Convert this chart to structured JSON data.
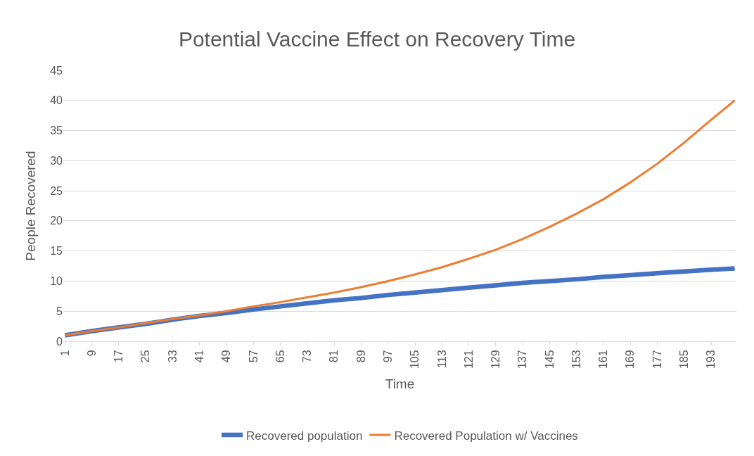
{
  "chart_data": {
    "type": "line",
    "title": "Potential Vaccine Effect on Recovery Time",
    "xlabel": "Time",
    "ylabel": "People Recovered",
    "x": [
      1,
      9,
      17,
      25,
      33,
      41,
      49,
      57,
      65,
      73,
      81,
      89,
      97,
      105,
      113,
      121,
      129,
      137,
      145,
      153,
      161,
      169,
      177,
      185,
      193,
      200
    ],
    "series": [
      {
        "name": "Recovered population",
        "color": "#4472c4",
        "values": [
          1,
          1.7,
          2.3,
          2.9,
          3.6,
          4.2,
          4.7,
          5.3,
          5.8,
          6.3,
          6.8,
          7.2,
          7.7,
          8.1,
          8.5,
          8.9,
          9.3,
          9.7,
          10.0,
          10.3,
          10.7,
          11.0,
          11.3,
          11.6,
          11.9,
          12.1
        ]
      },
      {
        "name": "Recovered Population w/ Vaccines",
        "color": "#ed7d31",
        "values": [
          1,
          1.7,
          2.3,
          3.0,
          3.7,
          4.3,
          5.0,
          5.8,
          6.5,
          7.3,
          8.1,
          9.0,
          10.0,
          11.1,
          12.3,
          13.7,
          15.2,
          17.0,
          19.0,
          21.2,
          23.6,
          26.4,
          29.5,
          33.0,
          36.8,
          40.0
        ]
      }
    ],
    "xlim": [
      0.5,
      200.5
    ],
    "xticks": [
      1,
      9,
      17,
      25,
      33,
      41,
      49,
      57,
      65,
      73,
      81,
      89,
      97,
      105,
      113,
      121,
      129,
      137,
      145,
      153,
      161,
      169,
      177,
      185,
      193
    ],
    "ylim": [
      0,
      45
    ],
    "yticks": [
      0,
      5,
      10,
      15,
      20,
      25,
      30,
      35,
      40,
      45
    ],
    "grid": "y",
    "legend": "bottom",
    "marker": "none",
    "line_style": "solid"
  }
}
